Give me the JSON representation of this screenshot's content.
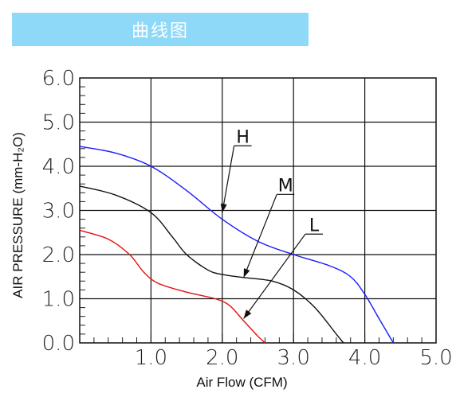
{
  "header": {
    "title": "曲线图"
  },
  "chart_data": {
    "type": "line",
    "xlabel": "Air Flow (CFM)",
    "ylabel": "AIR PRESSURE (mm-H₂O)",
    "xlim": [
      0,
      5.0
    ],
    "ylim": [
      0,
      6.0
    ],
    "x_ticks": [
      "1.0",
      "2.0",
      "3.0",
      "4.0",
      "5.0"
    ],
    "y_ticks": [
      "0.0",
      "1.0",
      "2.0",
      "3.0",
      "4.0",
      "5.0",
      "6.0"
    ],
    "grid": true,
    "series": [
      {
        "name": "H",
        "color": "#1a1aff",
        "points": [
          [
            0,
            4.45
          ],
          [
            0.5,
            4.3
          ],
          [
            1.0,
            4.0
          ],
          [
            1.5,
            3.45
          ],
          [
            2.0,
            2.8
          ],
          [
            2.5,
            2.3
          ],
          [
            3.0,
            2.0
          ],
          [
            3.5,
            1.75
          ],
          [
            3.8,
            1.5
          ],
          [
            4.0,
            1.1
          ],
          [
            4.2,
            0.55
          ],
          [
            4.4,
            0.0
          ]
        ]
      },
      {
        "name": "M",
        "color": "#111111",
        "points": [
          [
            0,
            3.55
          ],
          [
            0.5,
            3.35
          ],
          [
            1.0,
            2.95
          ],
          [
            1.3,
            2.4
          ],
          [
            1.5,
            2.0
          ],
          [
            1.8,
            1.65
          ],
          [
            2.0,
            1.55
          ],
          [
            2.3,
            1.48
          ],
          [
            2.7,
            1.4
          ],
          [
            3.0,
            1.2
          ],
          [
            3.3,
            0.8
          ],
          [
            3.6,
            0.2
          ],
          [
            3.7,
            0.0
          ]
        ]
      },
      {
        "name": "L",
        "color": "#e01010",
        "points": [
          [
            0,
            2.55
          ],
          [
            0.4,
            2.35
          ],
          [
            0.7,
            2.0
          ],
          [
            0.9,
            1.6
          ],
          [
            1.1,
            1.35
          ],
          [
            1.5,
            1.15
          ],
          [
            1.9,
            1.0
          ],
          [
            2.1,
            0.85
          ],
          [
            2.3,
            0.5
          ],
          [
            2.5,
            0.15
          ],
          [
            2.6,
            0.0
          ]
        ]
      }
    ],
    "annotations": [
      {
        "label": "H",
        "target": [
          2.0,
          2.95
        ],
        "text_pos": [
          2.3,
          4.5
        ]
      },
      {
        "label": "M",
        "target": [
          2.3,
          1.48
        ],
        "text_pos": [
          2.9,
          3.4
        ]
      },
      {
        "label": "L",
        "target": [
          2.3,
          0.55
        ],
        "text_pos": [
          3.3,
          2.5
        ]
      }
    ]
  }
}
